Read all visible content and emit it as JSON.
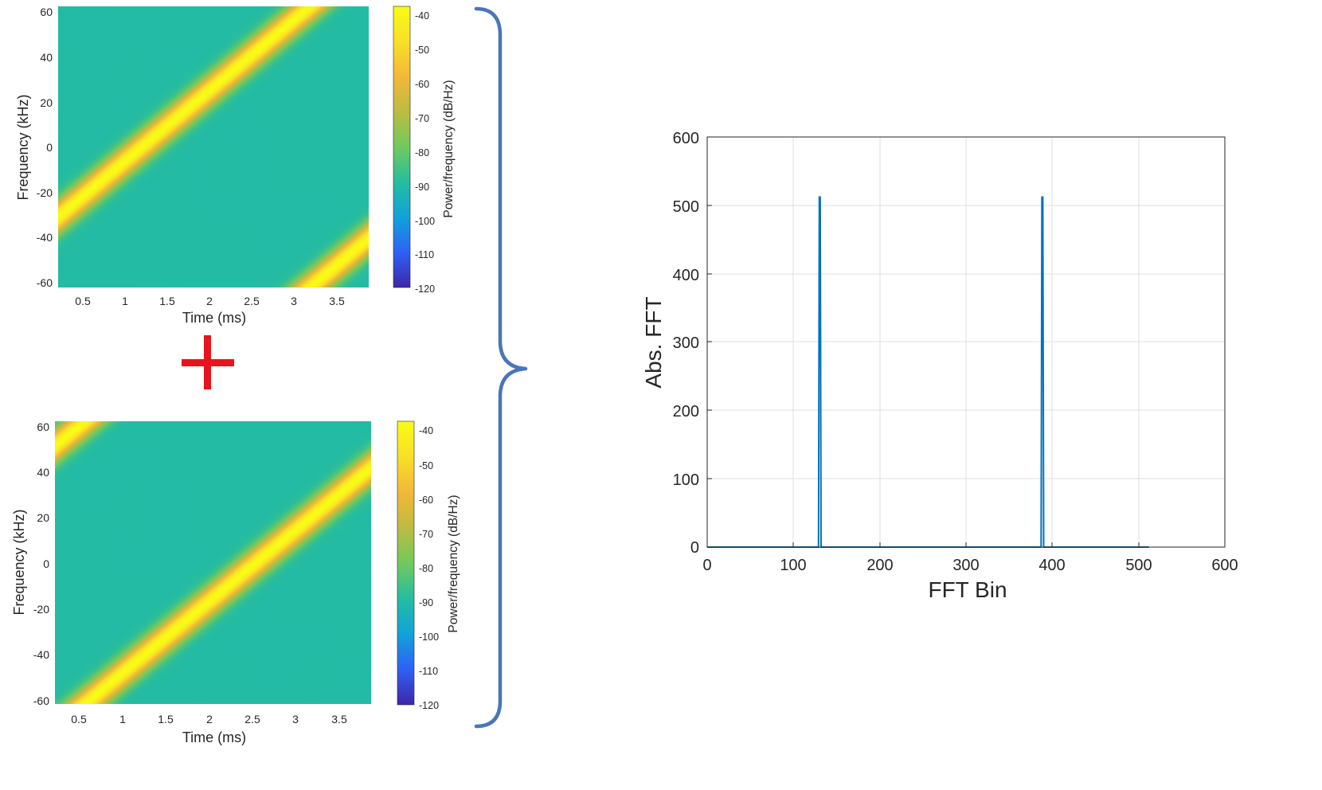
{
  "chart_data": [
    {
      "type": "heatmap",
      "subtype": "spectrogram",
      "xlabel": "Time (ms)",
      "ylabel": "Frequency (kHz)",
      "xticks": [
        "0.5",
        "1",
        "1.5",
        "2",
        "2.5",
        "3",
        "3.5"
      ],
      "yticks": [
        "60",
        "40",
        "20",
        "0",
        "-20",
        "-40",
        "-60"
      ],
      "xlim": [
        0.22,
        3.88
      ],
      "ylim": [
        -62,
        62
      ],
      "colorbar": {
        "label": "Power/frequency (dB/Hz)",
        "ticks": [
          "-40",
          "-50",
          "-60",
          "-70",
          "-80",
          "-90",
          "-100",
          "-110",
          "-120"
        ],
        "range": [
          -120,
          -38
        ],
        "colormap": [
          "#3e26a8",
          "#2e61f5",
          "#12a2d9",
          "#25bda0",
          "#71c95e",
          "#bbbc42",
          "#f3b838",
          "#f8e026",
          "#f9fb15"
        ]
      },
      "background_level_db": -90,
      "chirp": {
        "peak_db": -38,
        "slope_khz_per_ms": 31.3,
        "start_freq_khz": -31,
        "start_time_ms": 0.22,
        "wrap_span_khz": 124,
        "bandwidth_khz": 5
      }
    },
    {
      "type": "heatmap",
      "subtype": "spectrogram",
      "xlabel": "Time (ms)",
      "ylabel": "Frequency (kHz)",
      "xticks": [
        "0.5",
        "1",
        "1.5",
        "2",
        "2.5",
        "3",
        "3.5"
      ],
      "yticks": [
        "60",
        "40",
        "20",
        "0",
        "-20",
        "-40",
        "-60"
      ],
      "xlim": [
        0.22,
        3.88
      ],
      "ylim": [
        -62,
        62
      ],
      "colorbar": {
        "label": "Power/frequency (dB/Hz)",
        "ticks": [
          "-40",
          "-50",
          "-60",
          "-70",
          "-80",
          "-90",
          "-100",
          "-110",
          "-120"
        ],
        "range": [
          -120,
          -38
        ],
        "colormap": [
          "#3e26a8",
          "#2e61f5",
          "#12a2d9",
          "#25bda0",
          "#71c95e",
          "#bbbc42",
          "#f3b838",
          "#f8e026",
          "#f9fb15"
        ]
      },
      "background_level_db": -90,
      "chirp": {
        "peak_db": -38,
        "slope_khz_per_ms": 31.3,
        "start_freq_khz": 51,
        "start_time_ms": 0.22,
        "wrap_span_khz": 124,
        "bandwidth_khz": 5
      }
    },
    {
      "type": "line",
      "xlabel": "FFT Bin",
      "ylabel": "Abs. FFT",
      "xlim": [
        0,
        600
      ],
      "ylim": [
        0,
        600
      ],
      "xticks": [
        "0",
        "100",
        "200",
        "300",
        "400",
        "500",
        "600"
      ],
      "yticks": [
        "600",
        "500",
        "400",
        "300",
        "200",
        "100",
        "0"
      ],
      "grid": true,
      "color": "#0072bd",
      "x": [
        0,
        129,
        130,
        131,
        132,
        387,
        388,
        389,
        390,
        512
      ],
      "y": [
        0,
        0,
        512,
        512,
        0,
        0,
        512,
        512,
        0,
        0
      ]
    }
  ],
  "operators": {
    "plus_color": "#e8141b",
    "brace_color": "#4a76b8"
  }
}
